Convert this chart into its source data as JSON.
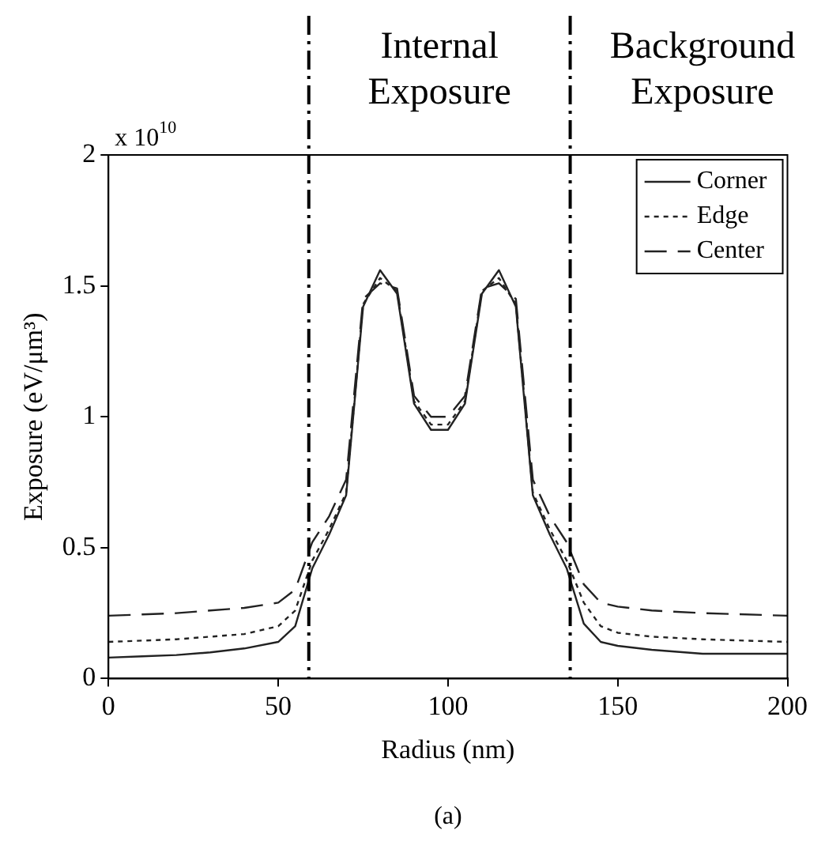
{
  "chart_data": {
    "type": "line",
    "xlabel": "Radius (nm)",
    "ylabel": "Exposure (eV/μm³)",
    "x": [
      0,
      10,
      20,
      30,
      40,
      50,
      55,
      60,
      65,
      70,
      75,
      80,
      85,
      90,
      95,
      100,
      105,
      110,
      115,
      120,
      125,
      130,
      135,
      140,
      145,
      150,
      160,
      175,
      200
    ],
    "series": [
      {
        "name": "Corner",
        "color": "#222222",
        "line_style": "solid",
        "values": [
          0.08,
          0.085,
          0.09,
          0.1,
          0.115,
          0.14,
          0.2,
          0.42,
          0.55,
          0.7,
          1.42,
          1.56,
          1.47,
          1.05,
          0.95,
          0.95,
          1.05,
          1.47,
          1.56,
          1.42,
          0.7,
          0.55,
          0.42,
          0.21,
          0.14,
          0.125,
          0.11,
          0.095,
          0.095
        ]
      },
      {
        "name": "Edge",
        "color": "#222222",
        "line_style": "dotted",
        "values": [
          0.14,
          0.145,
          0.15,
          0.16,
          0.17,
          0.2,
          0.26,
          0.45,
          0.57,
          0.71,
          1.43,
          1.53,
          1.48,
          1.06,
          0.97,
          0.97,
          1.06,
          1.48,
          1.53,
          1.43,
          0.71,
          0.57,
          0.45,
          0.29,
          0.2,
          0.175,
          0.16,
          0.15,
          0.14
        ]
      },
      {
        "name": "Center",
        "color": "#222222",
        "line_style": "dashed",
        "values": [
          0.24,
          0.245,
          0.25,
          0.26,
          0.27,
          0.29,
          0.34,
          0.52,
          0.62,
          0.76,
          1.45,
          1.51,
          1.49,
          1.08,
          1.0,
          1.0,
          1.08,
          1.49,
          1.51,
          1.45,
          0.76,
          0.62,
          0.52,
          0.36,
          0.29,
          0.275,
          0.26,
          0.25,
          0.24
        ]
      }
    ],
    "xlim": [
      0,
      200
    ],
    "xticks": [
      0,
      50,
      100,
      150,
      200
    ],
    "ylim": [
      0,
      2
    ],
    "yticks": [
      0,
      0.5,
      1,
      1.5,
      2
    ],
    "ref_lines": [
      {
        "axis": "x",
        "value": 59,
        "label": "Internal\nExposure",
        "color": "#000000",
        "line_style": "dashdot"
      },
      {
        "axis": "x",
        "value": 136,
        "label": "Background\nExposure",
        "color": "#000000",
        "line_style": "dashdot"
      }
    ],
    "annotations": [
      "x 10$^{10}$",
      "(a)"
    ],
    "grid": false,
    "legend": "top right",
    "marker": "none"
  }
}
